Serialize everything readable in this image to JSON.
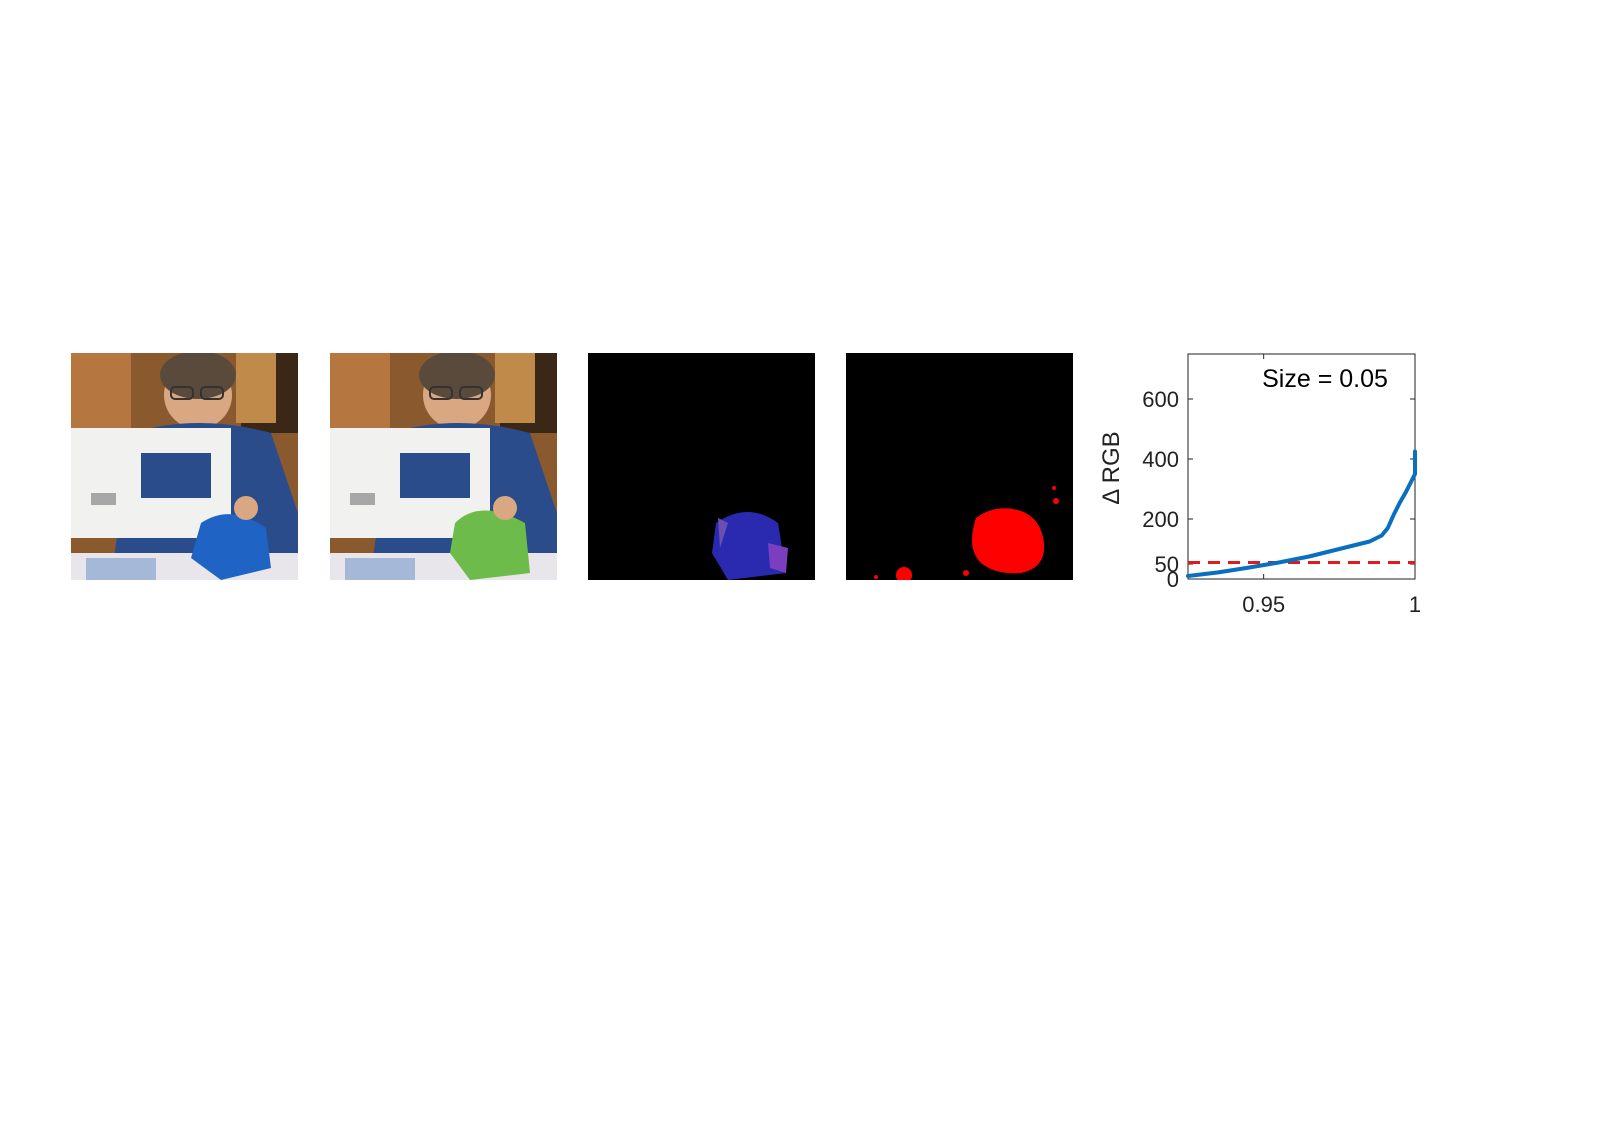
{
  "figure": {
    "panels": [
      {
        "id": "original",
        "content": "woman at sewing machine holding blue cloth"
      },
      {
        "id": "edited",
        "content": "woman at sewing machine holding green cloth"
      },
      {
        "id": "difference",
        "content": "dark difference map with blue/purple cloth region"
      },
      {
        "id": "mask",
        "content": "black mask with red changed regions"
      }
    ]
  },
  "colors": {
    "curve": "#0a6fbf",
    "threshold": "#e11b1b",
    "mask": "#ff0000",
    "blue_cloth": "#1f63c4",
    "green_cloth": "#6dbb4b"
  },
  "chart_data": {
    "type": "line",
    "annotation": "Size = 0.05",
    "xlabel": "",
    "ylabel": "Δ RGB",
    "xlim": [
      0.925,
      1.0
    ],
    "ylim": [
      0,
      750
    ],
    "x_ticks": [
      "0.95",
      "1"
    ],
    "y_ticks": [
      "0",
      "50",
      "200",
      "400",
      "600"
    ],
    "x_tick_values": [
      0.95,
      1.0
    ],
    "y_tick_values": [
      0,
      50,
      200,
      400,
      600
    ],
    "grid": false,
    "series": [
      {
        "x": [
          0.925,
          0.935,
          0.945,
          0.955,
          0.965,
          0.975,
          0.985,
          0.989,
          0.991,
          0.993,
          0.995,
          0.997,
          0.999,
          1.0,
          1.0
        ],
        "y": [
          10,
          22,
          38,
          55,
          75,
          100,
          125,
          145,
          170,
          215,
          255,
          290,
          330,
          350,
          425
        ]
      }
    ],
    "threshold": {
      "y": 55,
      "style": "dashed"
    }
  }
}
